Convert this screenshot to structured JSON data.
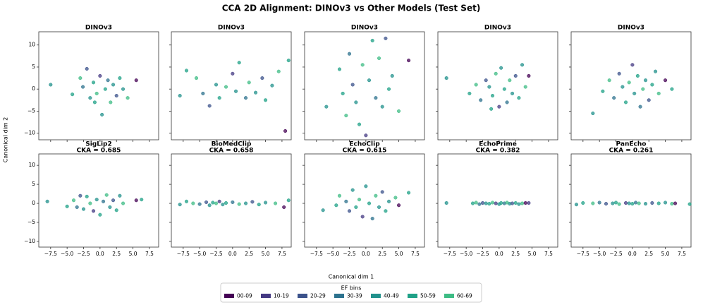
{
  "chart_data": {
    "type": "scatter",
    "title": "CCA 2D Alignment: DINOv3 vs Other Models (Test Set)",
    "xlabel": "Canonical dim 1",
    "ylabel": "Canonical dim 2",
    "xlim": [
      -9.3,
      8.9
    ],
    "ylim": [
      -11.5,
      13
    ],
    "xticks": [
      {
        "value": -7.5,
        "label": "−7.5"
      },
      {
        "value": -5,
        "label": "−5.0"
      },
      {
        "value": -2.5,
        "label": "−2.5"
      },
      {
        "value": 0,
        "label": "0.0"
      },
      {
        "value": 2.5,
        "label": "2.5"
      },
      {
        "value": 5,
        "label": "5.0"
      },
      {
        "value": 7.5,
        "label": "7.5"
      }
    ],
    "yticks": [
      {
        "value": -10,
        "label": "−10"
      },
      {
        "value": -5,
        "label": "−5"
      },
      0,
      5,
      10
    ],
    "legend": {
      "title": "EF bins",
      "series": [
        {
          "name": "00-09",
          "color": "#440154"
        },
        {
          "name": "10-19",
          "color": "#443983"
        },
        {
          "name": "20-29",
          "color": "#3b528b"
        },
        {
          "name": "30-39",
          "color": "#2c728e"
        },
        {
          "name": "40-49",
          "color": "#21918c"
        },
        {
          "name": "50-59",
          "color": "#1fa187"
        },
        {
          "name": "60-69",
          "color": "#3dbc84"
        }
      ]
    },
    "panels": [
      {
        "title": "DINOv3",
        "x": [
          -7.5,
          -4.2,
          -3,
          -2.6,
          -2,
          -1.5,
          -1,
          -0.5,
          0,
          0.3,
          0.8,
          1.2,
          1.6,
          2,
          2.5,
          3,
          3.5,
          4.2,
          5.5,
          -0.8
        ],
        "y": [
          1,
          -1.2,
          2.5,
          0.5,
          4.6,
          -2,
          1.5,
          -1,
          3,
          -5.8,
          0,
          2,
          -3,
          1,
          -1.5,
          2.5,
          0,
          -2,
          2,
          -3
        ],
        "bins": [
          "40-49",
          "50-59",
          "60-69",
          "30-39",
          "20-29",
          "40-49",
          "50-59",
          "60-69",
          "10-19",
          "40-49",
          "50-59",
          "30-39",
          "60-69",
          "40-49",
          "20-29",
          "50-59",
          "40-49",
          "60-69",
          "00-09",
          "50-59"
        ]
      },
      {
        "title": "DINOv3",
        "x": [
          -8,
          -7,
          -5.5,
          -4.5,
          -3.5,
          -2.5,
          -2,
          -1,
          0,
          0.5,
          1,
          2,
          2.5,
          3.5,
          4.5,
          5,
          6,
          7,
          8,
          8.5
        ],
        "y": [
          -1.5,
          4.2,
          2.5,
          -1,
          -3.8,
          1,
          -2,
          0.5,
          3.5,
          -0.5,
          6,
          -2,
          1.5,
          -0.8,
          2.5,
          -2.5,
          0.8,
          4,
          -9.5,
          6.5
        ],
        "bins": [
          "40-49",
          "50-59",
          "60-69",
          "30-39",
          "20-29",
          "40-49",
          "50-59",
          "60-69",
          "10-19",
          "40-49",
          "50-59",
          "30-39",
          "60-69",
          "40-49",
          "20-29",
          "50-59",
          "40-49",
          "60-69",
          "00-09",
          "50-59"
        ]
      },
      {
        "title": "DINOv3",
        "x": [
          -6,
          -4,
          -3,
          -2.5,
          -2,
          -1.5,
          -1,
          -0.5,
          0,
          0.5,
          1,
          1.5,
          2,
          2.5,
          3,
          3.5,
          4,
          5,
          6.5,
          -3.5
        ],
        "y": [
          -4,
          4.5,
          -6,
          8,
          1,
          -3,
          -8,
          5.5,
          -10.5,
          2,
          11,
          -2,
          7,
          -4,
          11.5,
          0,
          3,
          -5,
          6.5,
          -1
        ],
        "bins": [
          "40-49",
          "50-59",
          "60-69",
          "30-39",
          "20-29",
          "40-49",
          "50-59",
          "60-69",
          "10-19",
          "40-49",
          "50-59",
          "30-39",
          "60-69",
          "40-49",
          "20-29",
          "50-59",
          "40-49",
          "60-69",
          "00-09",
          "50-59"
        ]
      },
      {
        "title": "DINOv3",
        "x": [
          -8,
          -4.5,
          -3.5,
          -2.8,
          -2,
          -1.5,
          -1,
          -0.5,
          0,
          0.3,
          0.8,
          1.2,
          1.6,
          2,
          2.5,
          3,
          3.5,
          4,
          4.5,
          -1.2
        ],
        "y": [
          2.5,
          -1,
          1,
          -2.5,
          2,
          0.5,
          -1.5,
          3.5,
          -4,
          4.8,
          0,
          -3,
          2,
          -1,
          3,
          -2,
          5.5,
          0.5,
          3,
          -4.5
        ],
        "bins": [
          "40-49",
          "50-59",
          "60-69",
          "30-39",
          "20-29",
          "40-49",
          "50-59",
          "60-69",
          "10-19",
          "40-49",
          "50-59",
          "30-39",
          "60-69",
          "40-49",
          "20-29",
          "50-59",
          "40-49",
          "60-69",
          "00-09",
          "50-59"
        ]
      },
      {
        "title": "DINOv3",
        "x": [
          -6,
          -4.5,
          -3.5,
          -2.8,
          -2,
          -1.5,
          -1,
          -0.5,
          0,
          0.3,
          0.8,
          1.2,
          1.6,
          2,
          2.5,
          3,
          3.5,
          4,
          5,
          6
        ],
        "y": [
          -5.5,
          -0.5,
          2,
          -2,
          3.5,
          0.5,
          -3,
          1.5,
          5.5,
          -1,
          3,
          -4,
          0,
          2,
          -2.5,
          1,
          4,
          -1,
          2,
          0
        ],
        "bins": [
          "40-49",
          "50-59",
          "60-69",
          "30-39",
          "20-29",
          "40-49",
          "50-59",
          "60-69",
          "10-19",
          "40-49",
          "50-59",
          "30-39",
          "60-69",
          "40-49",
          "20-29",
          "50-59",
          "40-49",
          "60-69",
          "00-09",
          "50-59"
        ]
      },
      {
        "title": "SigLip2",
        "subtitle": "CKA = 0.685",
        "x": [
          -8,
          -5,
          -4,
          -3.5,
          -3,
          -2.5,
          -2,
          -1.5,
          -1,
          -0.5,
          0,
          0.5,
          1,
          1.5,
          2,
          2.5,
          3,
          3.5,
          5.5,
          6.3
        ],
        "y": [
          0.5,
          -0.8,
          0.8,
          -1,
          2,
          -1.5,
          1.8,
          0,
          -2,
          1,
          -3,
          0.5,
          2.2,
          -1,
          0.8,
          -1.8,
          2,
          0,
          0.8,
          1
        ],
        "bins": [
          "40-49",
          "50-59",
          "60-69",
          "30-39",
          "20-29",
          "40-49",
          "50-59",
          "60-69",
          "10-19",
          "40-49",
          "50-59",
          "30-39",
          "60-69",
          "40-49",
          "20-29",
          "50-59",
          "40-49",
          "60-69",
          "00-09",
          "50-59"
        ]
      },
      {
        "title": "BioMedClip",
        "subtitle": "CKA = 0.658",
        "x": [
          -8,
          -7,
          -6,
          -5,
          -4,
          -3.5,
          -3,
          -2.5,
          -2,
          -1.5,
          -1,
          0,
          1,
          2,
          3,
          4,
          5,
          6.5,
          7.8,
          8.5
        ],
        "y": [
          -0.3,
          0.5,
          0,
          -0.2,
          0.3,
          -0.5,
          0.2,
          0,
          0.5,
          -0.3,
          0.1,
          0.3,
          -0.2,
          0,
          0.4,
          -0.3,
          0.2,
          0,
          -1,
          0.8
        ],
        "bins": [
          "40-49",
          "50-59",
          "60-69",
          "30-39",
          "20-29",
          "40-49",
          "50-59",
          "60-69",
          "10-19",
          "40-49",
          "50-59",
          "30-39",
          "60-69",
          "40-49",
          "20-29",
          "50-59",
          "40-49",
          "60-69",
          "00-09",
          "50-59"
        ]
      },
      {
        "title": "EchoClip",
        "subtitle": "CKA = 0.615",
        "x": [
          -6.5,
          -4.5,
          -4,
          -3,
          -2.5,
          -2,
          -1.5,
          -1,
          -0.5,
          0,
          0.5,
          1,
          1.5,
          2,
          2.5,
          3,
          3.5,
          4.5,
          5,
          6.5
        ],
        "y": [
          -1.8,
          -0.5,
          2,
          0.5,
          -2,
          3.5,
          -1,
          1,
          -3.5,
          4.5,
          0,
          -4,
          2,
          -1,
          3,
          -2,
          0.5,
          1.5,
          -0.5,
          2.8
        ],
        "bins": [
          "40-49",
          "50-59",
          "60-69",
          "30-39",
          "20-29",
          "40-49",
          "50-59",
          "60-69",
          "10-19",
          "40-49",
          "50-59",
          "30-39",
          "60-69",
          "40-49",
          "20-29",
          "50-59",
          "40-49",
          "60-69",
          "00-09",
          "50-59"
        ]
      },
      {
        "title": "EchoPrime",
        "subtitle": "CKA = 0.382",
        "x": [
          -8,
          -4,
          -3.5,
          -3,
          -2.5,
          -2,
          -1.5,
          -1,
          -0.5,
          0,
          0.3,
          0.8,
          1.2,
          1.6,
          2,
          2.5,
          3,
          3.5,
          4,
          4.5
        ],
        "y": [
          0.1,
          0,
          0.2,
          -0.2,
          0.1,
          0,
          -0.1,
          0.2,
          0,
          -0.2,
          0.1,
          0,
          0.2,
          -0.1,
          0,
          0.1,
          -0.2,
          0,
          0.1,
          0.1
        ],
        "bins": [
          "40-49",
          "50-59",
          "60-69",
          "30-39",
          "20-29",
          "40-49",
          "50-59",
          "60-69",
          "10-19",
          "40-49",
          "50-59",
          "30-39",
          "60-69",
          "40-49",
          "20-29",
          "50-59",
          "40-49",
          "60-69",
          "00-09",
          "10-19"
        ]
      },
      {
        "title": "PanEcho",
        "subtitle": "CKA = 0.261",
        "x": [
          -8.5,
          -7.5,
          -6,
          -5,
          -4,
          -3,
          -2.5,
          -2,
          -1,
          -0.5,
          0,
          0.5,
          1,
          2,
          3,
          4,
          5,
          6,
          6.5,
          8.7
        ],
        "y": [
          -0.3,
          0.1,
          0,
          0.2,
          -0.1,
          0,
          0.2,
          -0.2,
          0.1,
          0,
          -0.1,
          0.2,
          0,
          -0.1,
          0.1,
          0,
          0.2,
          -0.1,
          0,
          -0.2
        ],
        "bins": [
          "40-49",
          "50-59",
          "60-69",
          "30-39",
          "20-29",
          "40-49",
          "50-59",
          "60-69",
          "10-19",
          "40-49",
          "50-59",
          "30-39",
          "60-69",
          "40-49",
          "20-29",
          "50-59",
          "40-49",
          "60-69",
          "00-09",
          "50-59"
        ]
      }
    ]
  }
}
